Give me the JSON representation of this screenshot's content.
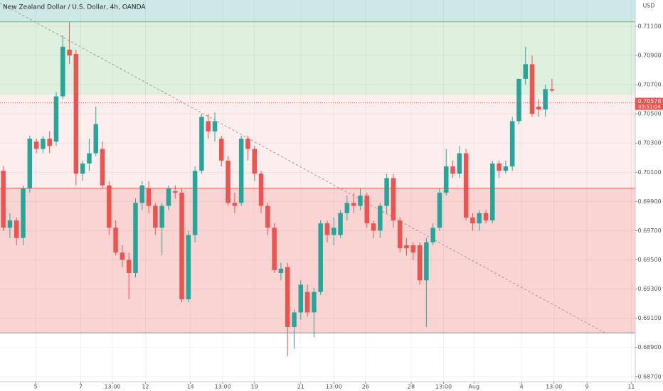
{
  "chart_data": {
    "type": "candlestick",
    "title": "New Zealand Dollar / U.S. Dollar, 4h, OANDA",
    "y_axis_label": "USD",
    "up_color": "#26a69a",
    "down_color": "#ef5350",
    "open": [
      0.7011,
      0.6972,
      0.6977,
      0.6965,
      0.6999,
      0.7031,
      0.7026,
      0.7033,
      0.7031,
      0.7062,
      0.7094,
      0.7091,
      0.7009,
      0.7016,
      0.7023,
      0.7026,
      0.7001,
      0.6972,
      0.6955,
      0.695,
      0.6941,
      0.6989,
      0.6999,
      0.6987,
      0.6972,
      0.6987,
      0.6997,
      0.6996,
      0.6923,
      0.6967,
      0.7011,
      0.7045,
      0.7038,
      0.7033,
      0.7018,
      0.6989,
      0.6989,
      0.7033,
      0.7026,
      0.7009,
      0.6987,
      0.6972,
      0.6941,
      0.6945,
      0.6904,
      0.6914,
      0.6928,
      0.6914,
      0.6928,
      0.6975,
      0.6967,
      0.6967,
      0.6982,
      0.6989,
      0.6987,
      0.6994,
      0.6975,
      0.697,
      0.6987,
      0.7006,
      0.6977,
      0.696,
      0.696,
      0.696,
      0.6936,
      0.6962,
      0.6972,
      0.6996,
      0.7014,
      0.7009,
      0.7023,
      0.6979,
      0.6975,
      0.6982,
      0.6977,
      0.7016,
      0.7011,
      0.7014,
      0.7045,
      0.7074,
      0.7084,
      0.7055,
      0.7053,
      0.7067
    ],
    "high": [
      0.7014,
      0.6982,
      0.6979,
      0.7001,
      0.7035,
      0.7033,
      0.7035,
      0.7038,
      0.7065,
      0.7104,
      0.7113,
      0.7094,
      0.7018,
      0.7033,
      0.7055,
      0.7031,
      0.7004,
      0.6977,
      0.696,
      0.6955,
      0.6992,
      0.7004,
      0.7004,
      0.6989,
      0.6989,
      0.7001,
      0.7001,
      0.6999,
      0.697,
      0.7014,
      0.705,
      0.705,
      0.7051,
      0.7035,
      0.7021,
      0.6996,
      0.7035,
      0.7035,
      0.7028,
      0.7011,
      0.6989,
      0.6975,
      0.6948,
      0.6948,
      0.6916,
      0.6936,
      0.6933,
      0.6931,
      0.6977,
      0.6977,
      0.6979,
      0.6984,
      0.6994,
      0.6996,
      0.6999,
      0.6996,
      0.6977,
      0.6989,
      0.7009,
      0.7009,
      0.6979,
      0.6965,
      0.6962,
      0.6962,
      0.6965,
      0.6975,
      0.6999,
      0.7026,
      0.7018,
      0.7028,
      0.7026,
      0.6982,
      0.6984,
      0.6984,
      0.7018,
      0.7018,
      0.7018,
      0.7048,
      0.7074,
      0.7096,
      0.709,
      0.706,
      0.707,
      0.7074
    ],
    "low": [
      0.697,
      0.6965,
      0.696,
      0.696,
      0.6996,
      0.7023,
      0.7023,
      0.7023,
      0.7028,
      0.706,
      0.7084,
      0.7001,
      0.7004,
      0.7011,
      0.7021,
      0.6999,
      0.6967,
      0.6953,
      0.6945,
      0.6923,
      0.6938,
      0.6984,
      0.6982,
      0.6967,
      0.6953,
      0.6984,
      0.6992,
      0.6921,
      0.6921,
      0.6962,
      0.7009,
      0.7033,
      0.7031,
      0.7014,
      0.6987,
      0.6982,
      0.6987,
      0.7018,
      0.7004,
      0.6982,
      0.6967,
      0.6941,
      0.6936,
      0.6884,
      0.6889,
      0.6909,
      0.6911,
      0.6897,
      0.6926,
      0.6962,
      0.696,
      0.6965,
      0.6977,
      0.6982,
      0.6984,
      0.6972,
      0.6965,
      0.6965,
      0.6982,
      0.6972,
      0.6955,
      0.6953,
      0.695,
      0.6933,
      0.6904,
      0.696,
      0.697,
      0.6994,
      0.7006,
      0.7006,
      0.6977,
      0.697,
      0.697,
      0.6975,
      0.6975,
      0.7006,
      0.7009,
      0.7011,
      0.7043,
      0.707,
      0.7048,
      0.7048,
      0.7048,
      0.7065
    ],
    "close": [
      0.6972,
      0.6977,
      0.6965,
      0.6999,
      0.7033,
      0.7026,
      0.7033,
      0.7028,
      0.7062,
      0.7096,
      0.709,
      0.7009,
      0.7016,
      0.7023,
      0.7043,
      0.7001,
      0.6972,
      0.6955,
      0.695,
      0.6941,
      0.6989,
      0.7001,
      0.6987,
      0.6972,
      0.6987,
      0.6999,
      0.6996,
      0.6923,
      0.6967,
      0.7011,
      0.7048,
      0.7038,
      0.7045,
      0.7018,
      0.6989,
      0.6987,
      0.7033,
      0.7026,
      0.7009,
      0.6987,
      0.6972,
      0.6943,
      0.6944,
      0.6904,
      0.6914,
      0.6933,
      0.6914,
      0.6928,
      0.6975,
      0.6967,
      0.6972,
      0.6982,
      0.6989,
      0.6987,
      0.6994,
      0.6975,
      0.697,
      0.6987,
      0.7006,
      0.6977,
      0.6958,
      0.6958,
      0.6955,
      0.6936,
      0.6962,
      0.6972,
      0.6996,
      0.7014,
      0.7009,
      0.7023,
      0.6979,
      0.6975,
      0.6982,
      0.6977,
      0.7016,
      0.7011,
      0.7014,
      0.7045,
      0.7074,
      0.7084,
      0.705,
      0.7053,
      0.7067,
      0.7066
    ],
    "xlim": [
      -0.5,
      95.6
    ],
    "xticks": [
      {
        "value": 4.9,
        "label": "5"
      },
      {
        "value": 11.7,
        "label": "7"
      },
      {
        "value": 16.5,
        "label": "13:00"
      },
      {
        "value": 21.5,
        "label": "12"
      },
      {
        "value": 28.3,
        "label": "14"
      },
      {
        "value": 33.2,
        "label": "13:00"
      },
      {
        "value": 38.0,
        "label": "19"
      },
      {
        "value": 45.0,
        "label": "21"
      },
      {
        "value": 50.0,
        "label": "13:00"
      },
      {
        "value": 54.8,
        "label": "26"
      },
      {
        "value": 61.7,
        "label": "28"
      },
      {
        "value": 66.6,
        "label": "13:00"
      },
      {
        "value": 71.2,
        "label": "Aug"
      },
      {
        "value": 78.4,
        "label": "4"
      },
      {
        "value": 83.3,
        "label": "13:00"
      },
      {
        "value": 88.3,
        "label": "9"
      },
      {
        "value": 95.0,
        "label": "11"
      }
    ],
    "ylim": [
      0.68665,
      0.7128
    ],
    "yticks": [
      {
        "value": 0.687,
        "label": "0.68700"
      },
      {
        "value": 0.689,
        "label": "0.68900"
      },
      {
        "value": 0.691,
        "label": "0.69100"
      },
      {
        "value": 0.693,
        "label": "0.69300"
      },
      {
        "value": 0.695,
        "label": "0.69500"
      },
      {
        "value": 0.697,
        "label": "0.69700"
      },
      {
        "value": 0.699,
        "label": "0.69900"
      },
      {
        "value": 0.701,
        "label": "0.70100"
      },
      {
        "value": 0.703,
        "label": "0.70300"
      },
      {
        "value": 0.705,
        "label": "0.70500"
      },
      {
        "value": 0.707,
        "label": "0.70700"
      },
      {
        "value": 0.709,
        "label": "0.70900"
      },
      {
        "value": 0.711,
        "label": "0.71100"
      }
    ],
    "zones": [
      {
        "low": 0.7113,
        "high": 0.7128,
        "color": "#cde9e7"
      },
      {
        "low": 0.7063,
        "high": 0.7113,
        "color": "#dff0df"
      },
      {
        "low": 0.6999,
        "high": 0.7063,
        "color": "#fdeeee"
      },
      {
        "low": 0.69,
        "high": 0.6999,
        "color": "#f9d4d3"
      }
    ],
    "levels": [
      {
        "value": 0.7113,
        "color": "#66bb6a"
      },
      {
        "value": 0.6999,
        "color": "#ef5350"
      },
      {
        "value": 0.69,
        "color": "#888888"
      }
    ],
    "trendline": {
      "x": [
        -0.5,
        91.0
      ],
      "y": [
        0.7126,
        0.69
      ],
      "color": "#999999"
    },
    "last_price": 0.70576,
    "countdown": "03:51:04"
  }
}
